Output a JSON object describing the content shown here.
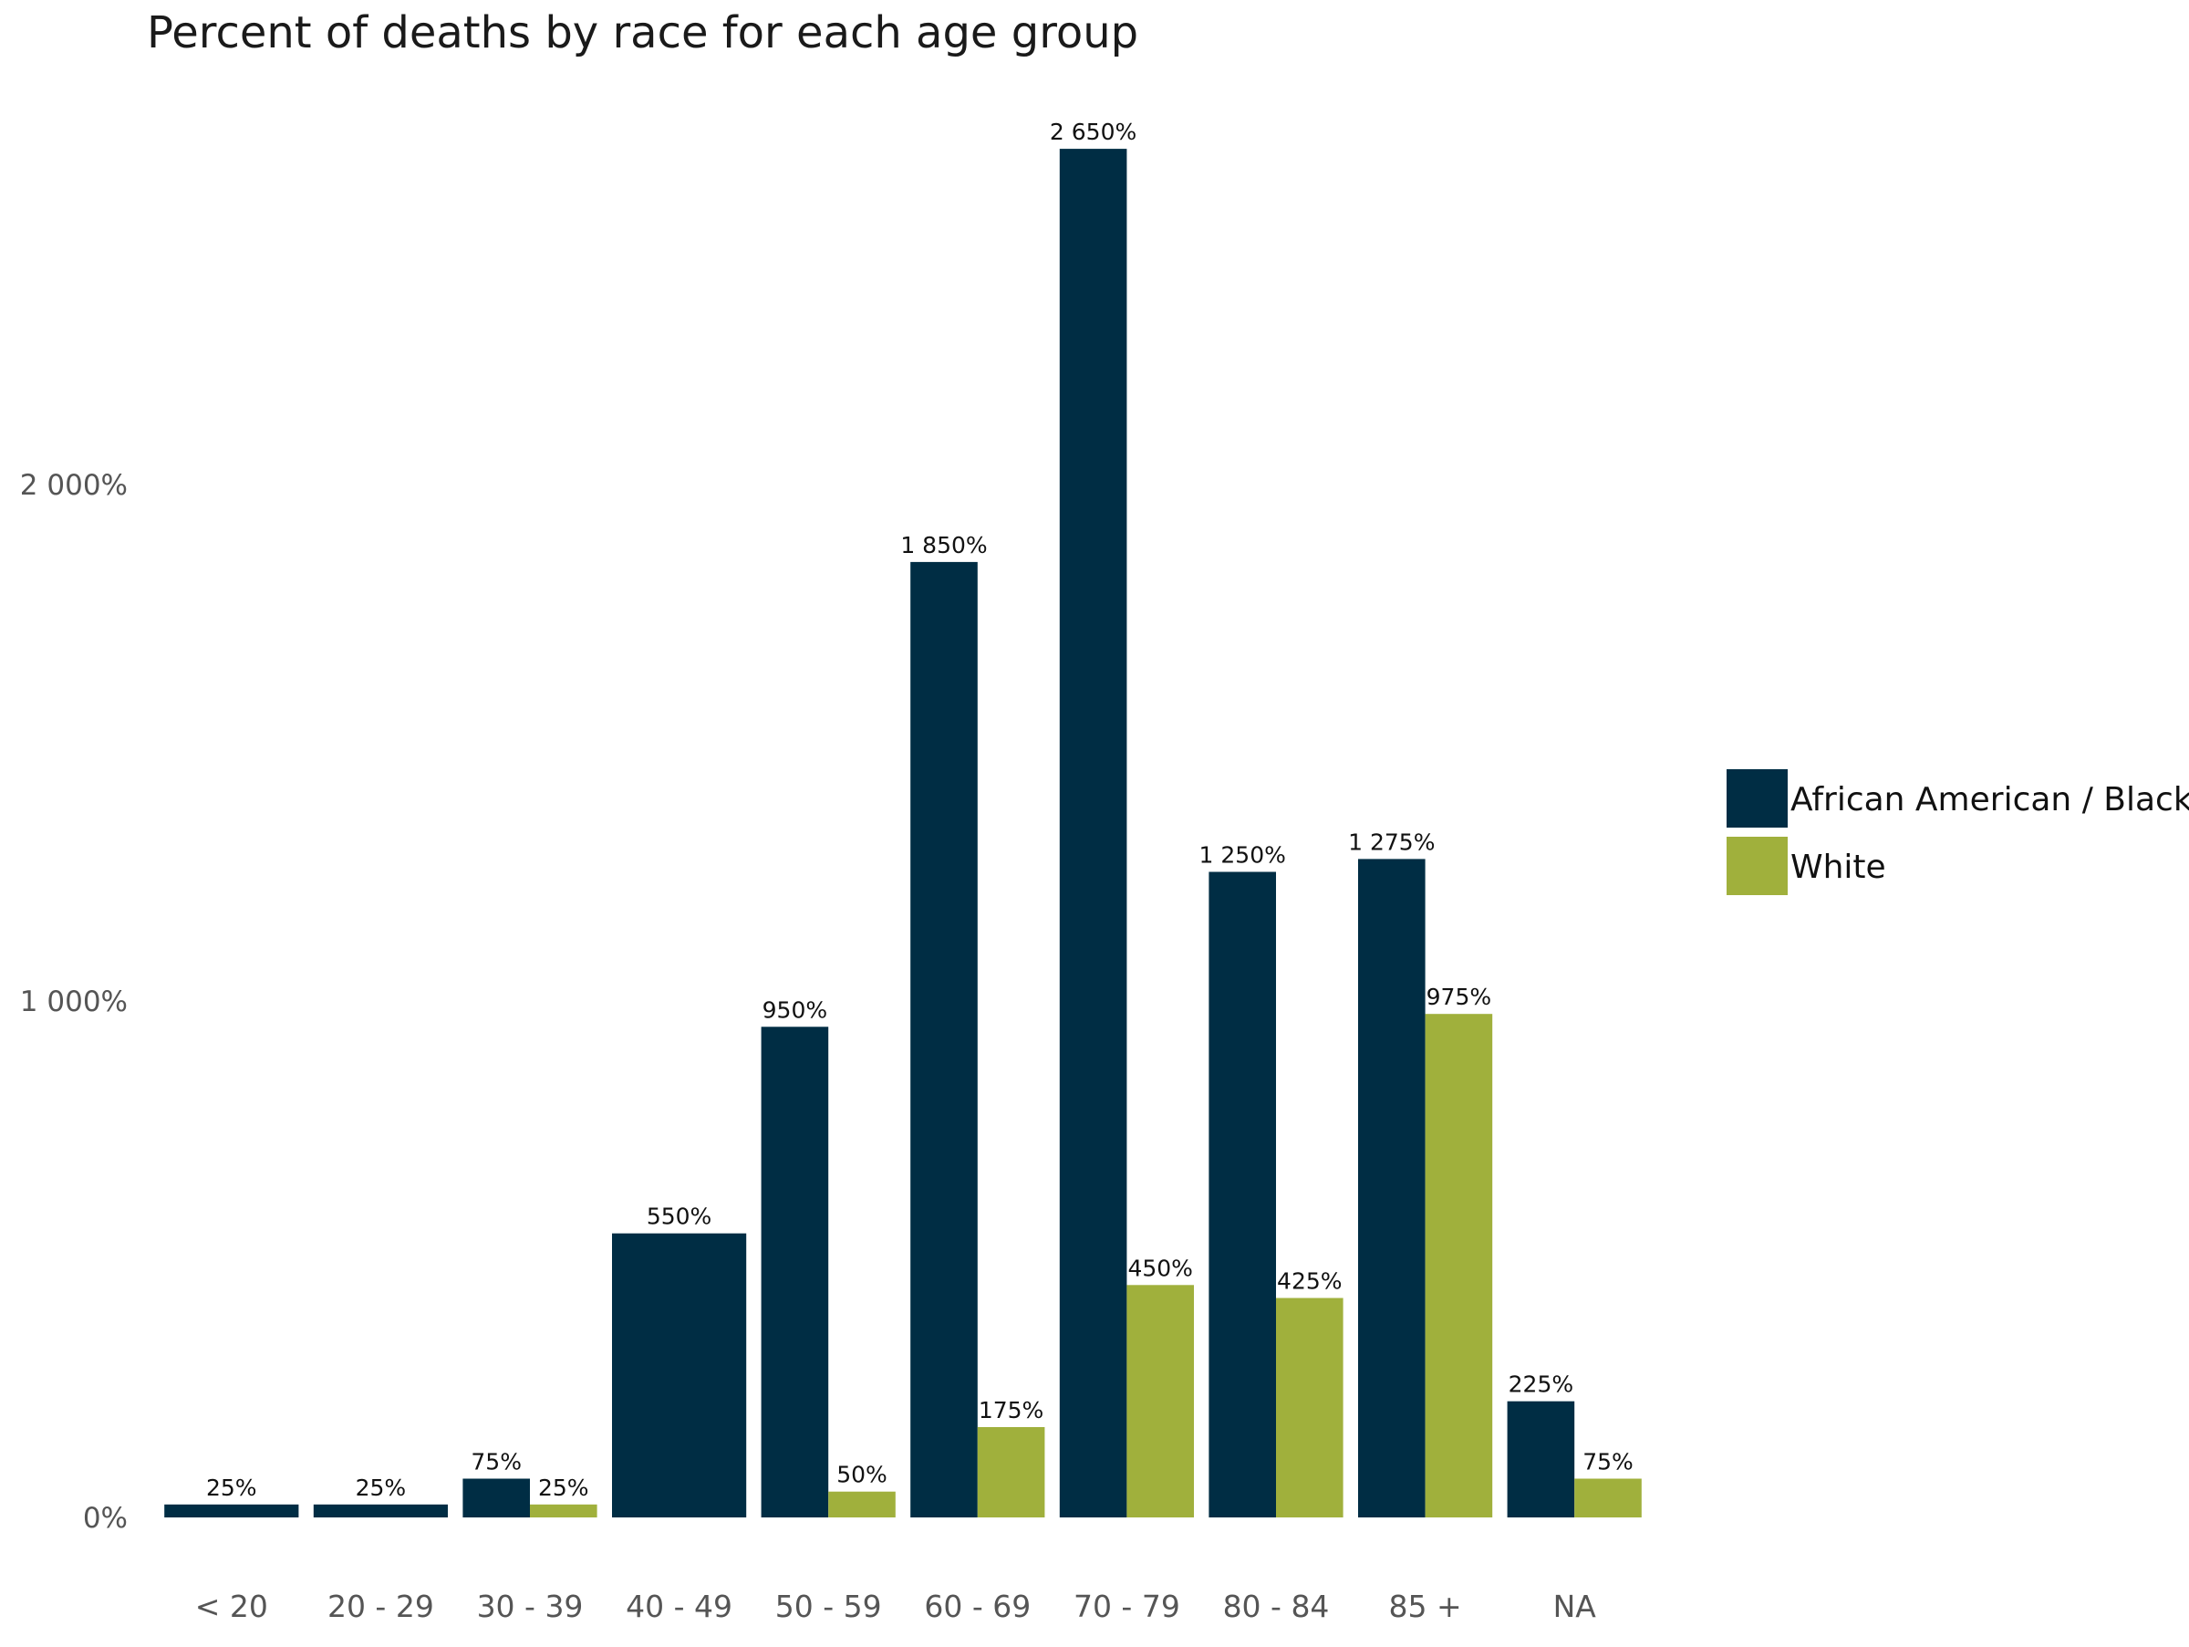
{
  "chart_data": {
    "type": "bar",
    "title": "Percent of deaths by race for each age group",
    "xlabel": "",
    "ylabel": "",
    "ylim": [
      0,
      2750
    ],
    "yticks": [
      0,
      1000,
      2000
    ],
    "ytick_labels": [
      "0%",
      "1 000%",
      "2 000%"
    ],
    "grid": false,
    "legend_position": "right",
    "categories": [
      "< 20",
      "20 - 29",
      "30 - 39",
      "40 - 49",
      "50 - 59",
      "60 - 69",
      "70 - 79",
      "80 - 84",
      "85 +",
      "NA"
    ],
    "series": [
      {
        "name": "African American / Black",
        "color": "#002d44",
        "values": [
          25,
          25,
          75,
          550,
          950,
          1850,
          2650,
          1250,
          1275,
          225
        ],
        "labels": [
          "25%",
          "25%",
          "75%",
          "550%",
          "950%",
          "1 850%",
          "2 650%",
          "1 250%",
          "1 275%",
          "225%"
        ]
      },
      {
        "name": "White",
        "color": "#a0b03c",
        "values": [
          null,
          null,
          25,
          null,
          50,
          175,
          450,
          425,
          975,
          75
        ],
        "labels": [
          null,
          null,
          "25%",
          null,
          "50%",
          "175%",
          "450%",
          "425%",
          "975%",
          "75%"
        ]
      }
    ]
  }
}
